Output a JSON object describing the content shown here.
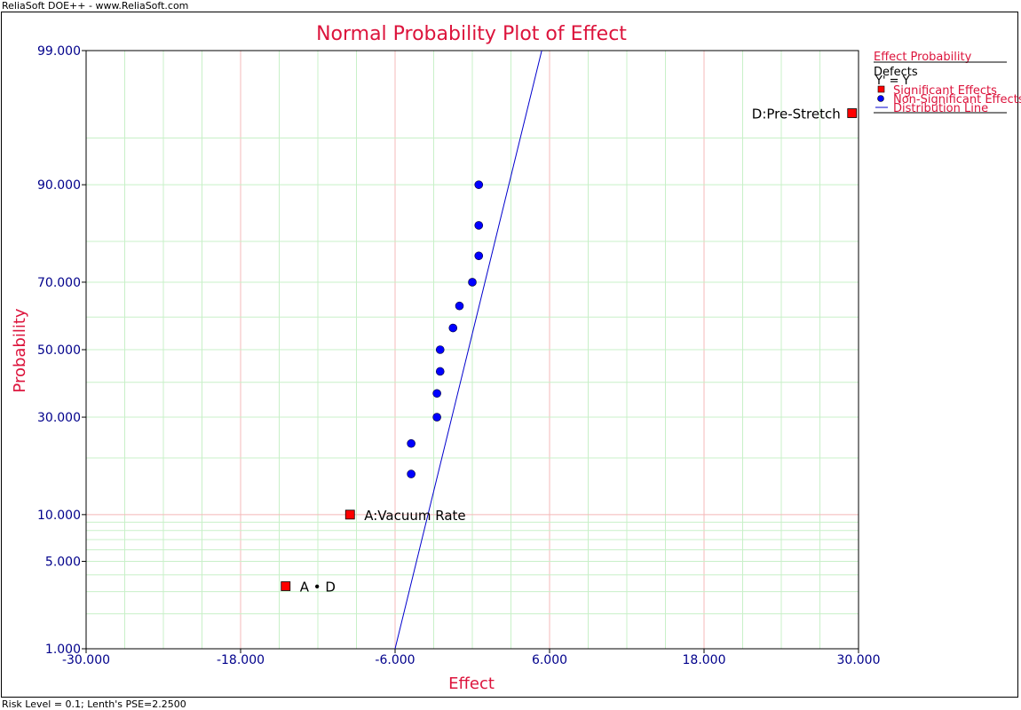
{
  "app": {
    "header_text": "ReliaSoft DOE++ - www.ReliaSoft.com",
    "status_text": "Risk Level = 0.1; Lenth's PSE=2.2500"
  },
  "legend": {
    "title": "Effect Probability",
    "dataset": "Defects",
    "equation": "Y' = Y",
    "items": [
      {
        "label": "Significant Effects",
        "marker": "square",
        "color": "#ff0000"
      },
      {
        "label": "Non-Significant Effects",
        "marker": "circle",
        "color": "#0000ff"
      },
      {
        "label": "Distribution Line",
        "marker": "line",
        "color": "#0000ff"
      }
    ]
  },
  "colors": {
    "title": "#dc143c",
    "tick": "#00008b",
    "grid_major": "#f4b8b8",
    "grid_minor": "#c8f0c8",
    "significant": "#ff0000",
    "non_significant": "#0000ff",
    "line": "#0000cd"
  },
  "chart_data": {
    "type": "scatter",
    "title": "Normal Probability Plot of Effect",
    "xlabel": "Effect",
    "ylabel": "Probability",
    "xlim": [
      -30,
      30
    ],
    "ylim": [
      1,
      99
    ],
    "y_scale": "normal-probability",
    "x_ticks": [
      "-30.000",
      "-18.000",
      "-6.000",
      "6.000",
      "18.000",
      "30.000"
    ],
    "x_tick_values": [
      -30,
      -18,
      -6,
      6,
      18,
      30
    ],
    "y_ticks": [
      "1.000",
      "5.000",
      "10.000",
      "30.000",
      "50.000",
      "70.000",
      "90.000",
      "99.000"
    ],
    "y_tick_values": [
      1,
      5,
      10,
      30,
      50,
      70,
      90,
      99
    ],
    "grid": true,
    "legend_position": "right",
    "significant_effects": [
      {
        "label": "A • D",
        "x": -14.5,
        "y": 3.3
      },
      {
        "label": "A:Vacuum Rate",
        "x": -9.5,
        "y": 10
      },
      {
        "label": "D:Pre-Stretch",
        "x": 29.5,
        "y": 96.7
      }
    ],
    "non_significant_effects": [
      {
        "x": -4.75,
        "y": 16.7
      },
      {
        "x": -4.75,
        "y": 23.3
      },
      {
        "x": -2.75,
        "y": 30
      },
      {
        "x": -2.75,
        "y": 36.7
      },
      {
        "x": -2.5,
        "y": 43.3
      },
      {
        "x": -2.5,
        "y": 50
      },
      {
        "x": -1.5,
        "y": 56.7
      },
      {
        "x": -1.0,
        "y": 63.3
      },
      {
        "x": 0.0,
        "y": 70
      },
      {
        "x": 0.5,
        "y": 76.7
      },
      {
        "x": 0.5,
        "y": 83.3
      },
      {
        "x": 0.5,
        "y": 90
      }
    ],
    "distribution_line": {
      "x1": -6.0,
      "y1": 1,
      "x2": 6.0,
      "y2": 99.5
    }
  }
}
